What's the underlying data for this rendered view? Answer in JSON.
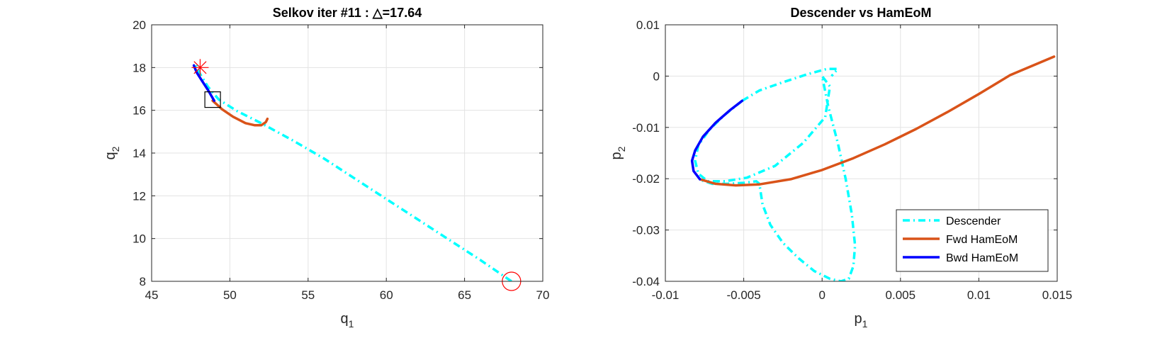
{
  "chart_data": [
    {
      "type": "line",
      "title": "Selkov iter #11 : △=17.64",
      "xlabel": "q",
      "xlabel_sub": "1",
      "ylabel": "q",
      "ylabel_sub": "2",
      "xlim": [
        45,
        70
      ],
      "ylim": [
        8,
        20
      ],
      "xticks": [
        "45",
        "50",
        "55",
        "60",
        "65",
        "70"
      ],
      "yticks": [
        "8",
        "10",
        "12",
        "14",
        "16",
        "18",
        "20"
      ],
      "grid": true,
      "series": [
        {
          "style": "dashdot",
          "color": "#00FFFF",
          "x": [
            68.0,
            66.0,
            64.0,
            62.0,
            60.0,
            58.0,
            56.0,
            54.0,
            52.0,
            50.5,
            49.3,
            48.6,
            48.1,
            47.8
          ],
          "y": [
            8.0,
            9.0,
            9.95,
            10.9,
            11.85,
            12.8,
            13.75,
            14.6,
            15.4,
            15.95,
            16.5,
            17.1,
            17.7,
            18.2
          ]
        },
        {
          "style": "solid",
          "color": "#D95319",
          "x": [
            48.9,
            49.5,
            50.2,
            51.0,
            51.6,
            52.0,
            52.3,
            52.4
          ],
          "y": [
            16.45,
            16.05,
            15.7,
            15.4,
            15.3,
            15.3,
            15.45,
            15.6
          ]
        },
        {
          "style": "solid",
          "color": "#0000FF",
          "x": [
            49.0,
            48.6,
            48.2,
            47.9,
            47.75,
            47.7
          ],
          "y": [
            16.45,
            16.95,
            17.4,
            17.75,
            18.0,
            18.1
          ]
        }
      ],
      "markers": [
        {
          "type": "circle",
          "color": "#FF0000",
          "x": 68.0,
          "y": 8.0
        },
        {
          "type": "star",
          "color": "#FF0000",
          "x": 48.1,
          "y": 18.0
        },
        {
          "type": "square",
          "color": "#000000",
          "x": 48.9,
          "y": 16.5
        }
      ]
    },
    {
      "type": "line",
      "title": "Descender vs HamEoM",
      "xlabel": "p",
      "xlabel_sub": "1",
      "ylabel": "p",
      "ylabel_sub": "2",
      "xlim": [
        -0.01,
        0.015
      ],
      "ylim": [
        -0.04,
        0.01
      ],
      "xticks": [
        "-0.01",
        "-0.005",
        "0",
        "0.005",
        "0.01",
        "0.015"
      ],
      "yticks": [
        "-0.04",
        "-0.03",
        "-0.02",
        "-0.01",
        "0",
        "0.01"
      ],
      "grid": true,
      "series": [
        {
          "name": "Descender",
          "style": "dashdot",
          "color": "#00FFFF",
          "x": [
            -0.0051,
            -0.0062,
            -0.0072,
            -0.0079,
            -0.0081,
            -0.0079,
            -0.0073,
            -0.0062,
            -0.0048,
            -0.003,
            -0.0012,
            0.0002,
            0.0005,
            0.0,
            0.0004,
            0.001,
            0.0015,
            0.0019,
            0.0021,
            0.002,
            0.0017,
            0.0012,
            0.0005,
            -0.0005,
            -0.0015,
            -0.0025,
            -0.0033,
            -0.0038,
            -0.004,
            -0.0042,
            -0.005,
            -0.006,
            -0.007,
            -0.0077
          ],
          "y": [
            -0.0048,
            -0.0075,
            -0.0105,
            -0.0135,
            -0.0165,
            -0.019,
            -0.0205,
            -0.0205,
            -0.0198,
            -0.0175,
            -0.013,
            -0.008,
            -0.002,
            0.0,
            -0.006,
            -0.013,
            -0.02,
            -0.027,
            -0.033,
            -0.037,
            -0.0395,
            -0.04,
            -0.0395,
            -0.038,
            -0.0355,
            -0.0325,
            -0.029,
            -0.025,
            -0.021,
            -0.0205,
            -0.0208,
            -0.021,
            -0.021,
            -0.0203
          ]
        },
        {
          "name": "",
          "style": "dashdot",
          "color": "#00FFFF",
          "x": [
            -0.0051,
            -0.004,
            -0.0025,
            -0.001,
            0.0003,
            0.001,
            0.0006
          ],
          "y": [
            -0.0048,
            -0.0028,
            -0.0012,
            0.0003,
            0.0014,
            0.0014,
            0.0
          ],
          "legend": false
        },
        {
          "name": "Fwd HamEoM",
          "style": "solid",
          "color": "#D95319",
          "x": [
            -0.0078,
            -0.0068,
            -0.0055,
            -0.004,
            -0.002,
            0.0,
            0.002,
            0.004,
            0.006,
            0.008,
            0.01,
            0.012,
            0.0148
          ],
          "y": [
            -0.0201,
            -0.021,
            -0.0213,
            -0.0211,
            -0.0201,
            -0.0183,
            -0.016,
            -0.0133,
            -0.0103,
            -0.007,
            -0.0035,
            0.0002,
            0.0038
          ]
        },
        {
          "name": "Bwd HamEoM",
          "style": "solid",
          "color": "#0000FF",
          "x": [
            -0.0078,
            -0.0082,
            -0.0083,
            -0.0081,
            -0.0076,
            -0.0068,
            -0.0059,
            -0.0051
          ],
          "y": [
            -0.0201,
            -0.0185,
            -0.0165,
            -0.0145,
            -0.0118,
            -0.0091,
            -0.0067,
            -0.0048
          ]
        }
      ],
      "legend": {
        "placement": "bottom-right",
        "entries": [
          "Descender",
          "Fwd HamEoM",
          "Bwd HamEoM"
        ]
      }
    }
  ]
}
